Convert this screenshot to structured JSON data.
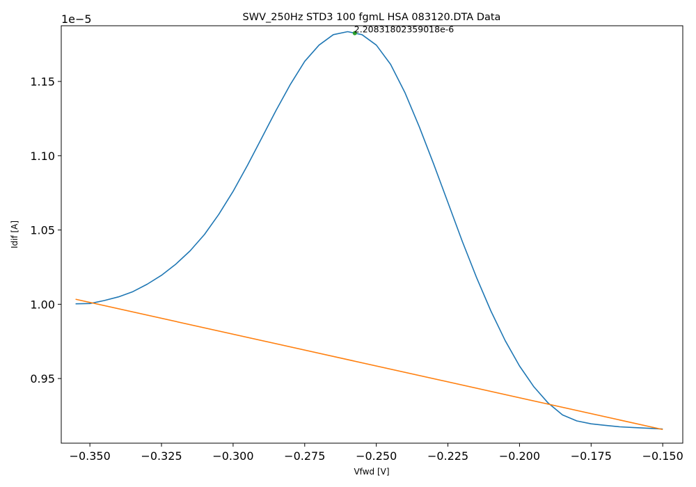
{
  "chart_data": {
    "type": "line",
    "title": "SWV_250Hz STD3 100 fgmL HSA 083120.DTA Data",
    "xlabel": "Vfwd [V]",
    "ylabel": "Idif [A]",
    "y_offset_label": "1e−5",
    "xlim": [
      -0.36,
      -0.143
    ],
    "ylim": [
      0.9065,
      1.1875
    ],
    "x_ticks": [
      -0.35,
      -0.325,
      -0.3,
      -0.275,
      -0.25,
      -0.225,
      -0.2,
      -0.175,
      -0.15
    ],
    "x_tick_labels": [
      "−0.350",
      "−0.325",
      "−0.300",
      "−0.275",
      "−0.250",
      "−0.225",
      "−0.200",
      "−0.175",
      "−0.150"
    ],
    "y_ticks": [
      0.95,
      1.0,
      1.05,
      1.1,
      1.15
    ],
    "y_tick_labels": [
      "0.95",
      "1.00",
      "1.05",
      "1.10",
      "1.15"
    ],
    "grid": false,
    "series": [
      {
        "color": "#1f77b4",
        "x": [
          -0.355,
          -0.35,
          -0.345,
          -0.34,
          -0.335,
          -0.33,
          -0.325,
          -0.32,
          -0.315,
          -0.31,
          -0.305,
          -0.3,
          -0.295,
          -0.29,
          -0.285,
          -0.28,
          -0.275,
          -0.27,
          -0.265,
          -0.26,
          -0.255,
          -0.25,
          -0.245,
          -0.24,
          -0.235,
          -0.23,
          -0.225,
          -0.22,
          -0.215,
          -0.21,
          -0.205,
          -0.2,
          -0.195,
          -0.19,
          -0.185,
          -0.18,
          -0.175,
          -0.17,
          -0.165,
          -0.16,
          -0.155,
          -0.15
        ],
        "y": [
          1.0003,
          1.0005,
          1.0025,
          1.005,
          1.0085,
          1.0135,
          1.0195,
          1.027,
          1.036,
          1.047,
          1.0605,
          1.076,
          1.0935,
          1.112,
          1.1305,
          1.148,
          1.1635,
          1.1745,
          1.1815,
          1.1835,
          1.1815,
          1.1745,
          1.1615,
          1.1425,
          1.1195,
          1.0945,
          1.0685,
          1.0425,
          1.018,
          0.9955,
          0.9755,
          0.9585,
          0.9445,
          0.9335,
          0.9255,
          0.9215,
          0.9195,
          0.9185,
          0.9175,
          0.917,
          0.9165,
          0.916
        ]
      },
      {
        "color": "#ff7f0e",
        "x": [
          -0.355,
          -0.15
        ],
        "y": [
          1.0034,
          0.9157
        ]
      }
    ],
    "annotations": [
      {
        "text": "2.20831802359018e-6",
        "x": -0.2575,
        "y": 1.1825,
        "marker_color": "#2ca02c"
      }
    ]
  }
}
